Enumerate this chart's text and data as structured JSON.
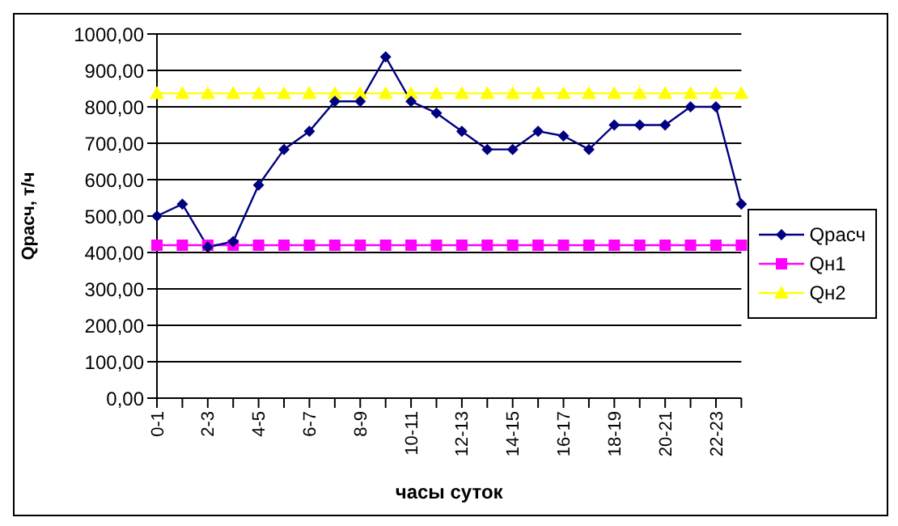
{
  "chart_data": {
    "type": "line",
    "xlabel": "часы суток",
    "ylabel": "Qрасч, т/ч",
    "categories": [
      "0-1",
      null,
      "2-3",
      null,
      "4-5",
      null,
      "6-7",
      null,
      "8-9",
      null,
      "10-11",
      null,
      "12-13",
      null,
      "14-15",
      null,
      "16-17",
      null,
      "18-19",
      null,
      "20-21",
      null,
      "22-23",
      null
    ],
    "series": [
      {
        "name": "Qрасч",
        "color": "#000080",
        "marker": "diamond",
        "values": [
          500,
          533,
          415,
          430,
          585,
          683,
          733,
          815,
          815,
          937,
          815,
          783,
          733,
          683,
          683,
          733,
          720,
          683,
          750,
          750,
          750,
          800,
          800,
          533
        ]
      },
      {
        "name": "Qн1",
        "color": "#ff00ff",
        "marker": "square",
        "values": [
          420,
          420,
          420,
          420,
          420,
          420,
          420,
          420,
          420,
          420,
          420,
          420,
          420,
          420,
          420,
          420,
          420,
          420,
          420,
          420,
          420,
          420,
          420,
          420
        ]
      },
      {
        "name": "Qн2",
        "color": "#ffff00",
        "marker": "triangle",
        "values": [
          837,
          837,
          837,
          837,
          837,
          837,
          837,
          837,
          837,
          837,
          837,
          837,
          837,
          837,
          837,
          837,
          837,
          837,
          837,
          837,
          837,
          837,
          837,
          837
        ]
      }
    ],
    "ylim": [
      0,
      1000
    ],
    "yticks": [
      {
        "value": 0,
        "label": "0,00"
      },
      {
        "value": 100,
        "label": "100,00"
      },
      {
        "value": 200,
        "label": "200,00"
      },
      {
        "value": 300,
        "label": "300,00"
      },
      {
        "value": 400,
        "label": "400,00"
      },
      {
        "value": 500,
        "label": "500,00"
      },
      {
        "value": 600,
        "label": "600,00"
      },
      {
        "value": 700,
        "label": "700,00"
      },
      {
        "value": 800,
        "label": "800,00"
      },
      {
        "value": 900,
        "label": "900,00"
      },
      {
        "value": 1000,
        "label": "1000,00"
      }
    ],
    "grid": "y",
    "legend": "right",
    "line_style": "solid"
  }
}
